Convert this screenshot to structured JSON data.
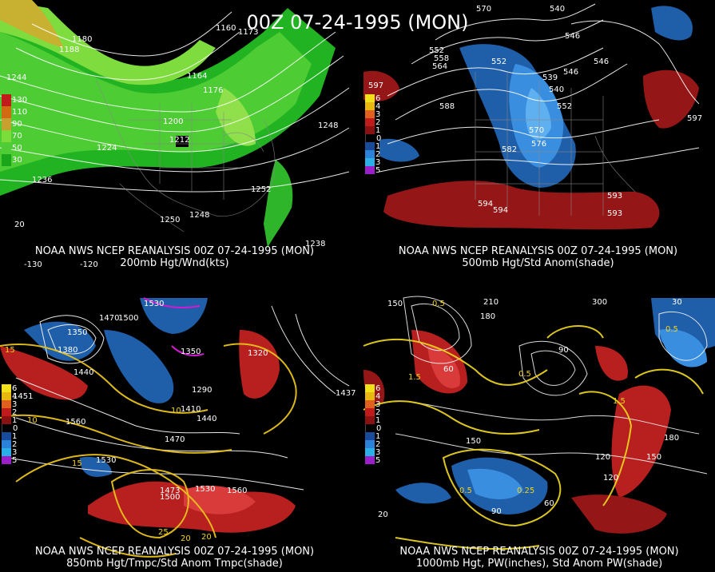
{
  "title": "00Z 07-24-1995 (MON)",
  "panels": [
    {
      "caption_line1": "NOAA NWS NCEP REANALYSIS 00Z 07-24-1995 (MON)",
      "caption_line2": "200mb Hgt/Wnd(kts)",
      "legend": [
        "130",
        "110",
        "90",
        "70",
        "50",
        "30"
      ],
      "legend_colors": [
        "#c21b1b",
        "#d26a12",
        "#c8a030",
        "#7bdc3a",
        "#4fcc36",
        "#1aa61a"
      ],
      "labels": [
        "1188",
        "1244",
        "1176",
        "1164",
        "1200",
        "1212",
        "1224",
        "1236",
        "1248",
        "1252",
        "1248",
        "1250",
        "1238",
        "1160",
        "1180",
        "1173",
        "20",
        "-130",
        "-120"
      ]
    },
    {
      "caption_line1": "NOAA NWS NCEP REANALYSIS 00Z 07-24-1995 (MON)",
      "caption_line2": "500mb Hgt/Std Anom(shade)",
      "legend": [
        "6",
        "4",
        "3",
        "2",
        "1",
        "0",
        "1",
        "2",
        "3",
        "5"
      ],
      "legend_colors": [
        "#f2e01a",
        "#e8b810",
        "#e06020",
        "#c01b1b",
        "#8a1111",
        "#000000",
        "#1a4a9a",
        "#2b82d8",
        "#2ab0e6",
        "#9a1fc8"
      ],
      "labels": [
        "570",
        "540",
        "546",
        "552",
        "558",
        "564",
        "546",
        "552",
        "546",
        "539",
        "540",
        "552",
        "588",
        "570",
        "576",
        "582",
        "594",
        "594",
        "593",
        "593",
        "597",
        "597"
      ]
    },
    {
      "caption_line1": "NOAA NWS NCEP REANALYSIS 00Z 07-24-1995 (MON)",
      "caption_line2": "850mb Hgt/Tmpc/Std Anom Tmpc(shade)",
      "legend": [
        "6",
        "4",
        "3",
        "2",
        "1",
        "0",
        "1",
        "2",
        "3",
        "5"
      ],
      "legend_colors": [
        "#f2e01a",
        "#e8b810",
        "#e06020",
        "#c01b1b",
        "#8a1111",
        "#000000",
        "#1a4a9a",
        "#2b82d8",
        "#2ab0e6",
        "#9a1fc8"
      ],
      "labels": [
        "1530",
        "1350",
        "1470",
        "1500",
        "1380",
        "1440",
        "1320",
        "1290",
        "1410",
        "1440",
        "1470",
        "1530",
        "1560",
        "1530",
        "1560",
        "1500",
        "1350",
        "1437",
        "1451",
        "1473",
        "15",
        "10",
        "10",
        "15",
        "20",
        "25",
        "20"
      ]
    },
    {
      "caption_line1": "NOAA NWS NCEP REANALYSIS 00Z 07-24-1995 (MON)",
      "caption_line2": "1000mb Hgt, PW(inches), Std Anom PW(shade)",
      "legend": [
        "6",
        "4",
        "3",
        "2",
        "1",
        "0",
        "1",
        "2",
        "3",
        "5"
      ],
      "legend_colors": [
        "#f2e01a",
        "#e8b810",
        "#e06020",
        "#c01b1b",
        "#8a1111",
        "#000000",
        "#1a4a9a",
        "#2b82d8",
        "#2ab0e6",
        "#9a1fc8"
      ],
      "labels": [
        "150",
        "210",
        "180",
        "300",
        "0.5",
        "1.5",
        "60",
        "0.5",
        "90",
        "150",
        "120",
        "180",
        "150",
        "120",
        "0.5",
        "0.25",
        "60",
        "90",
        "1.5",
        "0.5",
        "30",
        "20"
      ]
    }
  ]
}
